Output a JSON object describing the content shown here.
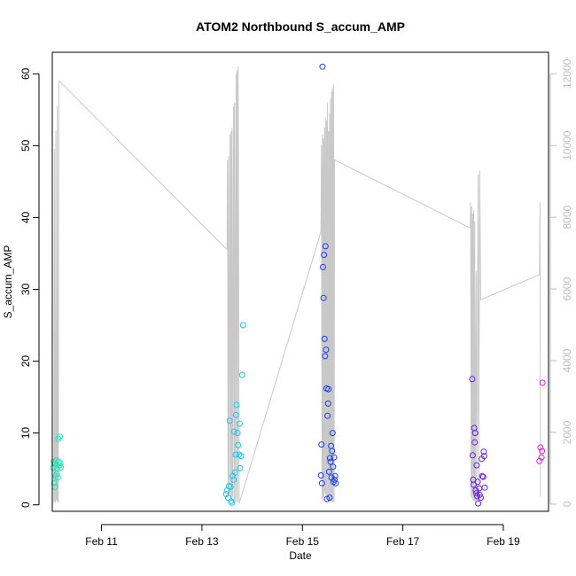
{
  "chart_data": {
    "type": "scatter",
    "title": "ATOM2 Northbound S_accum_AMP",
    "xlabel": "Date",
    "ylabel": "S_accum_AMP",
    "xlim": [
      10.02,
      19.9
    ],
    "ylim": [
      -0.9,
      63.0
    ],
    "y2lim": [
      -200,
      12600
    ],
    "x_ticks": [
      {
        "value": 11,
        "label": "Feb 11"
      },
      {
        "value": 13,
        "label": "Feb 13"
      },
      {
        "value": 15,
        "label": "Feb 15"
      },
      {
        "value": 17,
        "label": "Feb 17"
      },
      {
        "value": 19,
        "label": "Feb 19"
      }
    ],
    "y_ticks": [
      0,
      10,
      20,
      30,
      40,
      50,
      60
    ],
    "y2_ticks": [
      0,
      2000,
      4000,
      6000,
      8000,
      10000,
      12000
    ],
    "colors": {
      "frame": "#000000",
      "secondary_series": "#c8c8c8",
      "secondary_axis": "#bdbdbd"
    },
    "points": [
      {
        "x": 10.04,
        "y": 5.2,
        "color": "#1de9b6"
      },
      {
        "x": 10.05,
        "y": 6.0,
        "color": "#1de9b6"
      },
      {
        "x": 10.06,
        "y": 3.0,
        "color": "#1de9b6"
      },
      {
        "x": 10.07,
        "y": 2.5,
        "color": "#1de9b6"
      },
      {
        "x": 10.08,
        "y": 5.7,
        "color": "#1de9b6"
      },
      {
        "x": 10.09,
        "y": 4.0,
        "color": "#1de9b6"
      },
      {
        "x": 10.1,
        "y": 6.2,
        "color": "#1de9b6"
      },
      {
        "x": 10.11,
        "y": 4.3,
        "color": "#1de9b6"
      },
      {
        "x": 10.12,
        "y": 5.0,
        "color": "#1de9b6"
      },
      {
        "x": 10.13,
        "y": 3.8,
        "color": "#1de9b6"
      },
      {
        "x": 10.14,
        "y": 9.2,
        "color": "#1de9b6"
      },
      {
        "x": 10.15,
        "y": 6.0,
        "color": "#1de9b6"
      },
      {
        "x": 10.16,
        "y": 5.5,
        "color": "#1de9b6"
      },
      {
        "x": 10.17,
        "y": 9.5,
        "color": "#1de9b6"
      },
      {
        "x": 10.18,
        "y": 5.8,
        "color": "#1de9b6"
      },
      {
        "x": 10.19,
        "y": 5.2,
        "color": "#1de9b6"
      },
      {
        "x": 13.48,
        "y": 1.5,
        "color": "#1ec8e8"
      },
      {
        "x": 13.5,
        "y": 2.0,
        "color": "#1ec8e8"
      },
      {
        "x": 13.52,
        "y": 1.0,
        "color": "#1ec8e8"
      },
      {
        "x": 13.54,
        "y": 2.6,
        "color": "#1ec8e8"
      },
      {
        "x": 13.55,
        "y": 11.7,
        "color": "#1ec8e8"
      },
      {
        "x": 13.57,
        "y": 2.5,
        "color": "#1ec8e8"
      },
      {
        "x": 13.58,
        "y": 0.5,
        "color": "#1ec8e8"
      },
      {
        "x": 13.6,
        "y": 0.3,
        "color": "#1ec8e8"
      },
      {
        "x": 13.61,
        "y": 4.0,
        "color": "#1ec8e8"
      },
      {
        "x": 13.63,
        "y": 3.5,
        "color": "#1ec8e8"
      },
      {
        "x": 13.64,
        "y": 10.2,
        "color": "#1ec8e8"
      },
      {
        "x": 13.66,
        "y": 4.5,
        "color": "#1ec8e8"
      },
      {
        "x": 13.67,
        "y": 7.0,
        "color": "#1ec8e8"
      },
      {
        "x": 13.68,
        "y": 12.5,
        "color": "#1ec8e8"
      },
      {
        "x": 13.69,
        "y": 13.9,
        "color": "#1ec8e8"
      },
      {
        "x": 13.71,
        "y": 10.0,
        "color": "#1ec8e8"
      },
      {
        "x": 13.72,
        "y": 8.3,
        "color": "#1ec8e8"
      },
      {
        "x": 13.74,
        "y": 7.0,
        "color": "#1ec8e8"
      },
      {
        "x": 13.75,
        "y": 11.3,
        "color": "#1ec8e8"
      },
      {
        "x": 13.76,
        "y": 5.1,
        "color": "#1ec8e8"
      },
      {
        "x": 13.78,
        "y": 6.8,
        "color": "#1ec8e8"
      },
      {
        "x": 13.8,
        "y": 18.1,
        "color": "#1ec8e8"
      },
      {
        "x": 13.82,
        "y": 25.0,
        "color": "#1ec8e8"
      },
      {
        "x": 15.38,
        "y": 8.4,
        "color": "#1f3ef2"
      },
      {
        "x": 15.4,
        "y": 61.0,
        "color": "#1f3ef2"
      },
      {
        "x": 15.41,
        "y": 33.1,
        "color": "#1f3ef2"
      },
      {
        "x": 15.42,
        "y": 28.8,
        "color": "#1f3ef2"
      },
      {
        "x": 15.43,
        "y": 34.8,
        "color": "#1f3ef2"
      },
      {
        "x": 15.44,
        "y": 23.1,
        "color": "#1f3ef2"
      },
      {
        "x": 15.45,
        "y": 20.7,
        "color": "#1f3ef2"
      },
      {
        "x": 15.46,
        "y": 36.0,
        "color": "#1f3ef2"
      },
      {
        "x": 15.47,
        "y": 21.6,
        "color": "#1f3ef2"
      },
      {
        "x": 15.48,
        "y": 16.2,
        "color": "#1f3ef2"
      },
      {
        "x": 15.49,
        "y": 0.8,
        "color": "#1f3ef2"
      },
      {
        "x": 15.5,
        "y": 12.4,
        "color": "#1f3ef2"
      },
      {
        "x": 15.51,
        "y": 14.1,
        "color": "#1f3ef2"
      },
      {
        "x": 15.52,
        "y": 16.1,
        "color": "#1f3ef2"
      },
      {
        "x": 15.53,
        "y": 4.6,
        "color": "#1f3ef2"
      },
      {
        "x": 15.54,
        "y": 1.0,
        "color": "#1f3ef2"
      },
      {
        "x": 15.55,
        "y": 6.5,
        "color": "#1f3ef2"
      },
      {
        "x": 15.56,
        "y": 6.0,
        "color": "#1f3ef2"
      },
      {
        "x": 15.57,
        "y": 8.2,
        "color": "#1f3ef2"
      },
      {
        "x": 15.58,
        "y": 3.8,
        "color": "#1f3ef2"
      },
      {
        "x": 15.59,
        "y": 7.5,
        "color": "#1f3ef2"
      },
      {
        "x": 15.6,
        "y": 10.0,
        "color": "#1f3ef2"
      },
      {
        "x": 15.61,
        "y": 5.3,
        "color": "#1f3ef2"
      },
      {
        "x": 15.62,
        "y": 3.2,
        "color": "#1f3ef2"
      },
      {
        "x": 15.63,
        "y": 6.6,
        "color": "#1f3ef2"
      },
      {
        "x": 15.64,
        "y": 3.5,
        "color": "#1f3ef2"
      },
      {
        "x": 15.65,
        "y": 4.0,
        "color": "#1f3ef2"
      },
      {
        "x": 15.66,
        "y": 3.0,
        "color": "#1f3ef2"
      },
      {
        "x": 15.37,
        "y": 4.1,
        "color": "#1f3ef2"
      },
      {
        "x": 15.39,
        "y": 3.0,
        "color": "#1f3ef2"
      },
      {
        "x": 18.38,
        "y": 17.5,
        "color": "#6a1fe0"
      },
      {
        "x": 18.39,
        "y": 6.9,
        "color": "#6a1fe0"
      },
      {
        "x": 18.4,
        "y": 3.5,
        "color": "#6a1fe0"
      },
      {
        "x": 18.41,
        "y": 2.8,
        "color": "#6a1fe0"
      },
      {
        "x": 18.42,
        "y": 10.7,
        "color": "#6a1fe0"
      },
      {
        "x": 18.43,
        "y": 8.7,
        "color": "#6a1fe0"
      },
      {
        "x": 18.44,
        "y": 10.0,
        "color": "#6a1fe0"
      },
      {
        "x": 18.45,
        "y": 2.0,
        "color": "#6a1fe0"
      },
      {
        "x": 18.46,
        "y": 1.6,
        "color": "#6a1fe0"
      },
      {
        "x": 18.47,
        "y": 5.5,
        "color": "#6a1fe0"
      },
      {
        "x": 18.48,
        "y": 1.2,
        "color": "#6a1fe0"
      },
      {
        "x": 18.49,
        "y": 3.2,
        "color": "#6a1fe0"
      },
      {
        "x": 18.5,
        "y": 0.2,
        "color": "#6a1fe0"
      },
      {
        "x": 18.52,
        "y": 2.3,
        "color": "#6a1fe0"
      },
      {
        "x": 18.53,
        "y": 1.4,
        "color": "#6a1fe0"
      },
      {
        "x": 18.55,
        "y": 1.0,
        "color": "#6a1fe0"
      },
      {
        "x": 18.57,
        "y": 6.4,
        "color": "#6a1fe0"
      },
      {
        "x": 18.58,
        "y": 4.0,
        "color": "#6a1fe0"
      },
      {
        "x": 18.6,
        "y": 3.9,
        "color": "#6a1fe0"
      },
      {
        "x": 18.61,
        "y": 7.4,
        "color": "#6a1fe0"
      },
      {
        "x": 18.62,
        "y": 6.8,
        "color": "#6a1fe0"
      },
      {
        "x": 18.63,
        "y": 2.4,
        "color": "#6a1fe0"
      },
      {
        "x": 19.72,
        "y": 6.1,
        "color": "#e01fd6"
      },
      {
        "x": 19.74,
        "y": 8.0,
        "color": "#e01fd6"
      },
      {
        "x": 19.76,
        "y": 6.6,
        "color": "#e01fd6"
      },
      {
        "x": 19.77,
        "y": 7.5,
        "color": "#e01fd6"
      },
      {
        "x": 19.78,
        "y": 17.0,
        "color": "#e01fd6"
      }
    ],
    "secondary_series": {
      "name": "secondary",
      "axis": "right",
      "points": [
        [
          10.05,
          50
        ],
        [
          10.06,
          9900
        ],
        [
          10.07,
          100
        ],
        [
          10.08,
          50
        ],
        [
          10.09,
          10400
        ],
        [
          10.1,
          150
        ],
        [
          10.11,
          80
        ],
        [
          10.12,
          11100
        ],
        [
          10.13,
          100
        ],
        [
          10.14,
          40
        ],
        [
          10.15,
          11700
        ],
        [
          10.16,
          11800
        ],
        [
          13.5,
          7100
        ],
        [
          13.51,
          9600
        ],
        [
          13.52,
          200
        ],
        [
          13.53,
          9700
        ],
        [
          13.54,
          300
        ],
        [
          13.56,
          10300
        ],
        [
          13.57,
          150
        ],
        [
          13.58,
          10400
        ],
        [
          13.59,
          80
        ],
        [
          13.6,
          10500
        ],
        [
          13.61,
          200
        ],
        [
          13.63,
          11100
        ],
        [
          13.64,
          100
        ],
        [
          13.65,
          11200
        ],
        [
          13.66,
          50
        ],
        [
          13.68,
          12000
        ],
        [
          13.69,
          100
        ],
        [
          13.7,
          12100
        ],
        [
          13.71,
          50
        ],
        [
          13.72,
          12200
        ],
        [
          13.74,
          20
        ],
        [
          15.37,
          7600
        ],
        [
          15.38,
          10000
        ],
        [
          15.39,
          100
        ],
        [
          15.4,
          10300
        ],
        [
          15.41,
          200
        ],
        [
          15.42,
          10200
        ],
        [
          15.43,
          150
        ],
        [
          15.44,
          10500
        ],
        [
          15.45,
          300
        ],
        [
          15.46,
          10800
        ],
        [
          15.47,
          200
        ],
        [
          15.48,
          10700
        ],
        [
          15.49,
          150
        ],
        [
          15.5,
          11200
        ],
        [
          15.51,
          100
        ],
        [
          15.52,
          10400
        ],
        [
          15.53,
          80
        ],
        [
          15.54,
          10900
        ],
        [
          15.55,
          120
        ],
        [
          15.56,
          11300
        ],
        [
          15.57,
          100
        ],
        [
          15.58,
          11500
        ],
        [
          15.59,
          80
        ],
        [
          15.6,
          11600
        ],
        [
          15.61,
          60
        ],
        [
          15.62,
          11700
        ],
        [
          15.63,
          50
        ],
        [
          15.64,
          9600
        ],
        [
          18.34,
          7700
        ],
        [
          18.35,
          8400
        ],
        [
          18.36,
          200
        ],
        [
          18.37,
          8300
        ],
        [
          18.38,
          150
        ],
        [
          18.39,
          8100
        ],
        [
          18.4,
          100
        ],
        [
          18.41,
          8200
        ],
        [
          18.42,
          80
        ],
        [
          18.43,
          7900
        ],
        [
          18.44,
          60
        ],
        [
          18.46,
          6500
        ],
        [
          18.47,
          100
        ],
        [
          18.5,
          9200
        ],
        [
          18.51,
          120
        ],
        [
          18.53,
          9300
        ],
        [
          18.55,
          5700
        ],
        [
          19.72,
          6400
        ],
        [
          19.73,
          8400
        ],
        [
          19.74,
          200
        ]
      ]
    }
  }
}
